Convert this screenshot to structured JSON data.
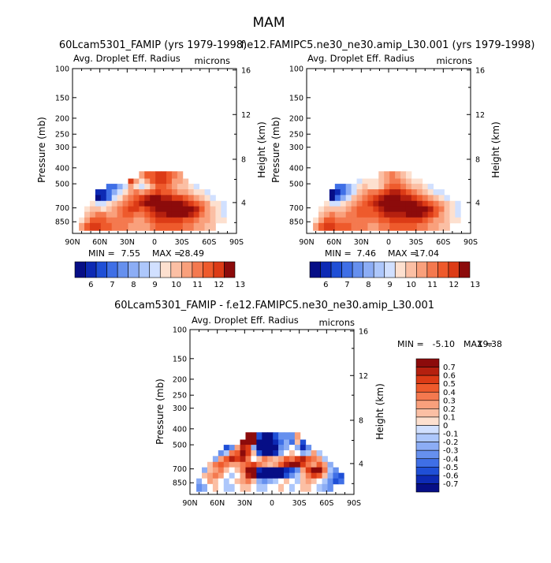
{
  "page": {
    "title": "MAM"
  },
  "colors": {
    "red_palette": [
      "#ffffff",
      "#fde0cf",
      "#fbbfa4",
      "#f9a07c",
      "#f4794f",
      "#ee5a2c",
      "#dc3b16",
      "#b5200f",
      "#8c0b0b"
    ],
    "blue_palette": [
      "#ffffff",
      "#d1e0ff",
      "#adc7fb",
      "#8cadf5",
      "#6690ee",
      "#3f6fe6",
      "#1f4fd6",
      "#0d2ab4",
      "#060e86"
    ]
  },
  "panels": [
    {
      "title": "60Lcam5301_FAMIP (yrs 1979-1998)",
      "field_label": "Avg. Droplet Eff. Radius",
      "units_label": "microns",
      "ylabel": "Pressure (mb)",
      "ylabel_right": "Height (km)",
      "min_label": "MIN =",
      "min_value": "7.55",
      "max_label": "MAX =",
      "max_value": "28.49"
    },
    {
      "title": "f.e12.FAMIPC5.ne30_ne30.amip_L30.001 (yrs 1979-1998)",
      "field_label": "Avg. Droplet Eff. Radius",
      "units_label": "microns",
      "ylabel": "Pressure (mb)",
      "ylabel_right": "Height (km)",
      "min_label": "MIN =",
      "min_value": "7.46",
      "max_label": "MAX =",
      "max_value": "17.04"
    },
    {
      "title": "60Lcam5301_FAMIP - f.e12.FAMIPC5.ne30_ne30.amip_L30.001",
      "field_label": "Avg. Droplet Eff. Radius",
      "units_label": "microns",
      "ylabel": "Pressure (mb)",
      "ylabel_right": "Height (km)",
      "min_label": "MIN =",
      "min_value": "-5.10",
      "max_label": "MAX =",
      "max_value": "19.38"
    }
  ],
  "chart_data": [
    {
      "type": "heatmap",
      "title": "60Lcam5301_FAMIP (yrs 1979-1998)",
      "field": "Avg. Droplet Eff. Radius",
      "units": "microns",
      "x_tick_labels": [
        "90N",
        "60N",
        "30N",
        "0",
        "30S",
        "60S",
        "90S"
      ],
      "y_left_tick_labels": [
        "100",
        "150",
        "200",
        "250",
        "300",
        "400",
        "500",
        "700",
        "850"
      ],
      "y_right_tick_labels": [
        "16",
        "12",
        "8",
        "4"
      ],
      "xlabel": "",
      "ylabel": "Pressure (mb)",
      "ylabel_right": "Height (km)",
      "xlim": [
        90,
        -90
      ],
      "ylim": [
        1000,
        100
      ],
      "y_scale": "log",
      "min": 7.55,
      "max": 28.49,
      "colorbar_labels": [
        "6",
        "7",
        "8",
        "9",
        "10",
        "11",
        "12",
        "13"
      ],
      "lat": [
        80,
        74,
        68,
        62,
        56,
        50,
        44,
        38,
        32,
        26,
        20,
        14,
        8,
        2,
        -4,
        -10,
        -16,
        -22,
        -28,
        -34,
        -40,
        -46,
        -52,
        -58,
        -64,
        -70,
        -76,
        -82
      ],
      "pressure": [
        450,
        480,
        520,
        560,
        610,
        660,
        710,
        770,
        830,
        900
      ],
      "values": [
        [
          null,
          null,
          null,
          null,
          null,
          null,
          null,
          null,
          null,
          null,
          null,
          11,
          12,
          12,
          12.5,
          12.5,
          12,
          11.5,
          11,
          null,
          null,
          null,
          null,
          null,
          null,
          null,
          null,
          null
        ],
        [
          null,
          null,
          null,
          null,
          null,
          null,
          null,
          null,
          null,
          12.5,
          11,
          10,
          11,
          12,
          12.5,
          12.5,
          12,
          11,
          11,
          10.5,
          null,
          null,
          null,
          null,
          null,
          null,
          null,
          null
        ],
        [
          null,
          null,
          null,
          null,
          null,
          7,
          7,
          8,
          9,
          11,
          10,
          9.5,
          10,
          11,
          12,
          12,
          11.5,
          11,
          10.5,
          10.5,
          10,
          9,
          null,
          null,
          null,
          null,
          null,
          null
        ],
        [
          null,
          null,
          null,
          6.5,
          6.5,
          7,
          8,
          9,
          10,
          11,
          11.5,
          11,
          11.5,
          12,
          12.5,
          12,
          12,
          11.5,
          11,
          11,
          10.5,
          10,
          10,
          9.5,
          null,
          null,
          null,
          null
        ],
        [
          null,
          null,
          null,
          6,
          6.5,
          7.5,
          9,
          10,
          11,
          11.5,
          12,
          12.5,
          13,
          13.5,
          13.5,
          13,
          13,
          12.5,
          12.5,
          12,
          11.5,
          11,
          10.5,
          10,
          9.5,
          null,
          null,
          null
        ],
        [
          null,
          null,
          10,
          9,
          9,
          10,
          10.5,
          11,
          11.5,
          12,
          12.5,
          13,
          13.5,
          13.5,
          13.5,
          13.5,
          13.5,
          13.5,
          13.5,
          13,
          12.5,
          12,
          11.5,
          11,
          10,
          10,
          9.5,
          null
        ],
        [
          null,
          10,
          10.5,
          10.5,
          10,
          10.5,
          11,
          11.5,
          12,
          12.5,
          12.5,
          12,
          12.5,
          13,
          13.5,
          13.5,
          13.5,
          13.5,
          13.5,
          13.5,
          13.5,
          13,
          12,
          11,
          10.5,
          10,
          9.5,
          null
        ],
        [
          null,
          10.5,
          11,
          11.5,
          11.5,
          11,
          11,
          11.5,
          12,
          12,
          11.5,
          11.5,
          12,
          12.5,
          13,
          13,
          13.5,
          13.5,
          13.5,
          13.5,
          13,
          12.5,
          11.5,
          11,
          10.5,
          10,
          9.5,
          null
        ],
        [
          10,
          11,
          12,
          12,
          12,
          11.5,
          11.5,
          11.5,
          11.5,
          11.5,
          11,
          11,
          11.5,
          12,
          12.5,
          12.5,
          12.5,
          12.5,
          12.5,
          12,
          12,
          11.5,
          11,
          11,
          10.5,
          10,
          10,
          null
        ],
        [
          11,
          12,
          12.5,
          12.5,
          12,
          12,
          11.5,
          11.5,
          11.5,
          11,
          11,
          11,
          11,
          11.5,
          12,
          12,
          12,
          12,
          12,
          11.5,
          11.5,
          11,
          11,
          10.5,
          10.5,
          null,
          null,
          null
        ]
      ]
    },
    {
      "type": "heatmap",
      "title": "f.e12.FAMIPC5.ne30_ne30.amip_L30.001 (yrs 1979-1998)",
      "field": "Avg. Droplet Eff. Radius",
      "units": "microns",
      "x_tick_labels": [
        "90N",
        "60N",
        "30N",
        "0",
        "30S",
        "60S",
        "90S"
      ],
      "y_left_tick_labels": [
        "100",
        "150",
        "200",
        "250",
        "300",
        "400",
        "500",
        "700",
        "850"
      ],
      "y_right_tick_labels": [
        "16",
        "12",
        "8",
        "4"
      ],
      "xlabel": "",
      "ylabel": "Pressure (mb)",
      "ylabel_right": "Height (km)",
      "xlim": [
        90,
        -90
      ],
      "ylim": [
        1000,
        100
      ],
      "y_scale": "log",
      "min": 7.46,
      "max": 17.04,
      "colorbar_labels": [
        "6",
        "7",
        "8",
        "9",
        "10",
        "11",
        "12",
        "13"
      ],
      "lat": [
        80,
        74,
        68,
        62,
        56,
        50,
        44,
        38,
        32,
        26,
        20,
        14,
        8,
        2,
        -4,
        -10,
        -16,
        -22,
        -28,
        -34,
        -40,
        -46,
        -52,
        -58,
        -64,
        -70,
        -76,
        -82
      ],
      "pressure": [
        450,
        480,
        520,
        560,
        610,
        660,
        710,
        770,
        830,
        900
      ],
      "values": [
        [
          null,
          null,
          null,
          null,
          null,
          null,
          null,
          null,
          null,
          null,
          null,
          null,
          10.5,
          11,
          11.5,
          11,
          10.5,
          10,
          null,
          null,
          null,
          null,
          null,
          null,
          null,
          null,
          null,
          null
        ],
        [
          null,
          null,
          null,
          null,
          null,
          null,
          null,
          null,
          9.5,
          10,
          10,
          10,
          10.5,
          11,
          11.5,
          11.5,
          11,
          10.5,
          10,
          10,
          null,
          null,
          null,
          null,
          null,
          null,
          null,
          null
        ],
        [
          null,
          null,
          null,
          null,
          7.5,
          7.5,
          8,
          9,
          10,
          10.5,
          10,
          10,
          10.5,
          11.5,
          12,
          12,
          11.5,
          11,
          10.5,
          10.5,
          10,
          9.5,
          null,
          null,
          null,
          null,
          null,
          null
        ],
        [
          null,
          null,
          null,
          6,
          6.5,
          7.5,
          8.5,
          9.5,
          10.5,
          11,
          11.5,
          11.5,
          12,
          12.5,
          13,
          13,
          12.5,
          12,
          11.5,
          11,
          10.5,
          10,
          9.5,
          9,
          null,
          null,
          null,
          null
        ],
        [
          null,
          null,
          null,
          6,
          7,
          8,
          9.5,
          10.5,
          11,
          11.5,
          12,
          12.5,
          13,
          13.5,
          13.5,
          13.5,
          13,
          13,
          12.5,
          12,
          11.5,
          11,
          10.5,
          10,
          9.5,
          null,
          null,
          null
        ],
        [
          null,
          null,
          10,
          9.5,
          9.5,
          10,
          10.5,
          11,
          11.5,
          12,
          12.5,
          13,
          13.5,
          13.5,
          13.5,
          13.5,
          13.5,
          13.5,
          13.5,
          13,
          12.5,
          12,
          11.5,
          11,
          10.5,
          10,
          9.5,
          null
        ],
        [
          null,
          10,
          10.5,
          10.5,
          10.5,
          10.5,
          11,
          11.5,
          12,
          12,
          12,
          12.5,
          13,
          13.5,
          13.5,
          13.5,
          13.5,
          13.5,
          13.5,
          13.5,
          13.5,
          13,
          12,
          11.5,
          10.5,
          10,
          9.5,
          null
        ],
        [
          null,
          10.5,
          11,
          11.5,
          11,
          11,
          11.5,
          11.5,
          12,
          12,
          12,
          12,
          12.5,
          13,
          13,
          13,
          13,
          13.5,
          13.5,
          13.5,
          13,
          12.5,
          12,
          11,
          10.5,
          10,
          9.5,
          null
        ],
        [
          10,
          11,
          12,
          12,
          11.5,
          11.5,
          11.5,
          11.5,
          11.5,
          11.5,
          11.5,
          11.5,
          12,
          12,
          12.5,
          12.5,
          12.5,
          12.5,
          12.5,
          12.5,
          12,
          11.5,
          11,
          11,
          10.5,
          10,
          10,
          null
        ],
        [
          11,
          12,
          12.5,
          12.5,
          12,
          12,
          12,
          11.5,
          11.5,
          11.5,
          11,
          11,
          11.5,
          11.5,
          12,
          12,
          12,
          12,
          12,
          11.5,
          11.5,
          11,
          11,
          10.5,
          10.5,
          null,
          null,
          null
        ]
      ]
    },
    {
      "type": "heatmap",
      "title": "60Lcam5301_FAMIP - f.e12.FAMIPC5.ne30_ne30.amip_L30.001",
      "field": "Avg. Droplet Eff. Radius",
      "units": "microns",
      "x_tick_labels": [
        "90N",
        "60N",
        "30N",
        "0",
        "30S",
        "60S",
        "90S"
      ],
      "y_left_tick_labels": [
        "100",
        "150",
        "200",
        "250",
        "300",
        "400",
        "500",
        "700",
        "850"
      ],
      "y_right_tick_labels": [
        "16",
        "12",
        "8",
        "4"
      ],
      "xlabel": "",
      "ylabel": "Pressure (mb)",
      "ylabel_right": "Height (km)",
      "xlim": [
        90,
        -90
      ],
      "ylim": [
        1000,
        100
      ],
      "y_scale": "log",
      "min": -5.1,
      "max": 19.38,
      "colorbar_labels": [
        "0.7",
        "0.6",
        "0.5",
        "0.4",
        "0.3",
        "0.2",
        "0.1",
        "0",
        "-0.1",
        "-0.2",
        "-0.3",
        "-0.4",
        "-0.5",
        "-0.6",
        "-0.7"
      ],
      "lat": [
        80,
        74,
        68,
        62,
        56,
        50,
        44,
        38,
        32,
        26,
        20,
        14,
        8,
        2,
        -4,
        -10,
        -16,
        -22,
        -28,
        -34,
        -40,
        -46,
        -52,
        -58,
        -64,
        -70,
        -76,
        -82
      ],
      "pressure": [
        450,
        480,
        520,
        560,
        610,
        660,
        710,
        770,
        830,
        900
      ],
      "values": [
        [
          null,
          null,
          null,
          null,
          null,
          null,
          null,
          null,
          null,
          0.8,
          0.8,
          -0.5,
          -0.8,
          -0.8,
          -0.5,
          -0.3,
          -0.3,
          -0.3,
          0.2,
          null,
          null,
          null,
          null,
          null,
          null,
          null,
          null,
          null
        ],
        [
          null,
          null,
          null,
          null,
          null,
          null,
          null,
          null,
          0.8,
          0.8,
          0.7,
          -0.8,
          -0.8,
          -0.8,
          -0.6,
          -0.4,
          -0.2,
          -0.4,
          0.1,
          -0.5,
          null,
          null,
          null,
          null,
          null,
          null,
          null,
          null
        ],
        [
          null,
          null,
          null,
          null,
          null,
          -0.5,
          -0.3,
          0.2,
          0.6,
          0.5,
          -0.2,
          -0.8,
          -0.8,
          -0.8,
          -0.8,
          -0.3,
          -0.2,
          0,
          -0.2,
          -0.6,
          -0.3,
          null,
          null,
          null,
          null,
          null,
          null,
          null
        ],
        [
          null,
          null,
          null,
          null,
          -0.3,
          -0.1,
          0.3,
          0.4,
          0.7,
          0.5,
          0.1,
          -0.5,
          -0.8,
          -0.8,
          -0.6,
          -0.2,
          0,
          0.1,
          0,
          -0.2,
          -0.1,
          0.2,
          -0.1,
          null,
          null,
          null,
          null,
          null
        ],
        [
          null,
          null,
          null,
          -0.2,
          0.2,
          0.4,
          0.6,
          0.5,
          0.6,
          0.3,
          0,
          0.1,
          0.3,
          0.2,
          0.1,
          0.2,
          0.4,
          0.3,
          0.5,
          0.6,
          0.4,
          0.3,
          0.2,
          -0.1,
          null,
          null,
          null,
          null
        ],
        [
          null,
          null,
          0.1,
          0.3,
          0.4,
          0.3,
          0.2,
          0.2,
          0.3,
          0.4,
          0.5,
          0.3,
          0.2,
          0.1,
          0.2,
          0.4,
          0.6,
          0.8,
          0.8,
          0.5,
          0.3,
          0.2,
          0.4,
          0.2,
          -0.2,
          null,
          null,
          null
        ],
        [
          null,
          -0.2,
          0.1,
          0.2,
          0.3,
          0.1,
          0,
          0.1,
          0.3,
          0.7,
          0.8,
          -0.6,
          -0.8,
          -0.8,
          -0.8,
          -0.8,
          -0.6,
          -0.5,
          -0.3,
          0.2,
          0.5,
          0.8,
          0.8,
          0.3,
          -0.1,
          -0.3,
          null,
          null
        ],
        [
          null,
          0.1,
          0.2,
          0.3,
          0.2,
          0,
          -0.1,
          0,
          0.2,
          0.6,
          0.8,
          -0.7,
          -0.8,
          -0.8,
          -0.8,
          -0.7,
          -0.5,
          -0.3,
          -0.1,
          0.1,
          0.3,
          0.5,
          0.4,
          0.1,
          -0.2,
          -0.4,
          -0.5,
          null
        ],
        [
          -0.2,
          0,
          0.2,
          0.1,
          0,
          -0.1,
          0,
          0.1,
          0.2,
          0.3,
          0.1,
          -0.2,
          -0.3,
          -0.2,
          -0.1,
          0,
          0.1,
          0,
          -0.1,
          0.1,
          0.2,
          0.1,
          0,
          -0.1,
          -0.3,
          -0.5,
          -0.4,
          null
        ],
        [
          -0.3,
          -0.2,
          0,
          0.1,
          0,
          -0.1,
          -0.1,
          0,
          0.1,
          0.1,
          0,
          -0.1,
          -0.1,
          0,
          0,
          0.1,
          0,
          -0.1,
          0,
          0.1,
          0.1,
          0,
          -0.1,
          -0.2,
          -0.3,
          null,
          null,
          null
        ]
      ]
    }
  ]
}
